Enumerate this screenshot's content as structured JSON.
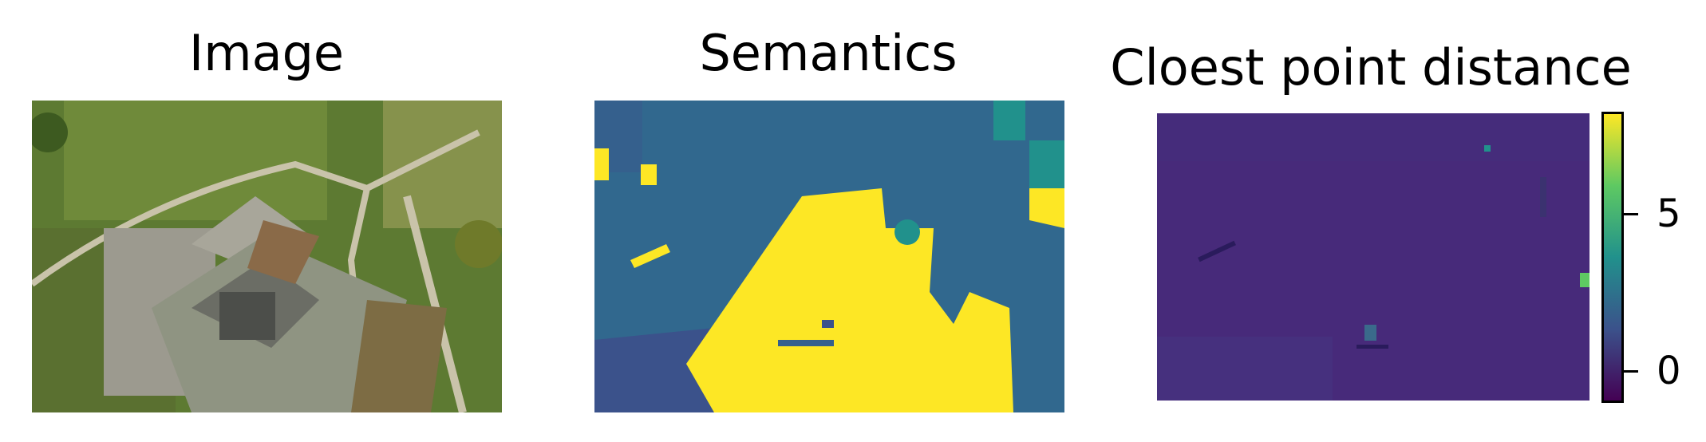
{
  "panels": [
    {
      "title": "Image"
    },
    {
      "title": "Semantics"
    },
    {
      "title": "Cloest point distance"
    }
  ],
  "colorbar": {
    "ticks": [
      "0",
      "5"
    ],
    "colormap": "viridis",
    "colors": [
      "#440154",
      "#3b528b",
      "#21918c",
      "#5ec962",
      "#fde725"
    ]
  }
}
